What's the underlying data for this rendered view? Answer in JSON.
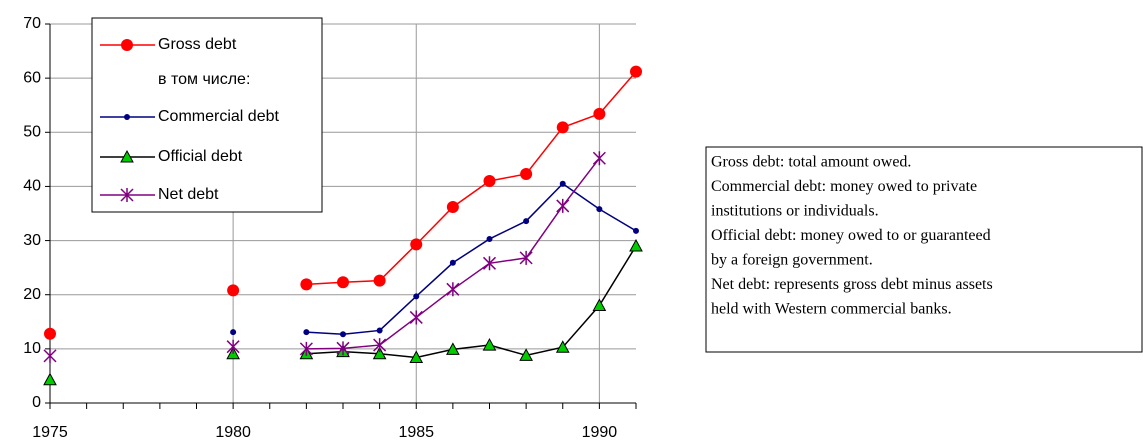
{
  "chart_data": {
    "type": "line",
    "x": [
      1975,
      1976,
      1977,
      1978,
      1979,
      1980,
      1981,
      1982,
      1983,
      1984,
      1985,
      1986,
      1987,
      1988,
      1989,
      1990,
      1991
    ],
    "series": [
      {
        "name": "Gross debt",
        "color": "#ff0000",
        "marker": "circle",
        "values": [
          12.8,
          null,
          null,
          null,
          null,
          20.8,
          null,
          21.9,
          22.3,
          22.6,
          29.3,
          36.2,
          41.0,
          42.3,
          50.9,
          53.4,
          61.2
        ]
      },
      {
        "name": "Commercial debt",
        "color": "#000080",
        "marker": "dot",
        "values": [
          null,
          null,
          null,
          null,
          null,
          13.1,
          null,
          13.1,
          12.7,
          13.4,
          19.7,
          25.9,
          30.3,
          33.6,
          40.5,
          35.8,
          31.8
        ]
      },
      {
        "name": "Official debt",
        "color": "#000000",
        "marker": "triangle",
        "marker_fill": "#00cc00",
        "values": [
          4.3,
          null,
          null,
          null,
          null,
          9.1,
          null,
          9.1,
          9.5,
          9.1,
          8.4,
          9.9,
          10.7,
          8.8,
          10.3,
          18.0,
          29.0
        ]
      },
      {
        "name": "Net debt",
        "color": "#800080",
        "marker": "star",
        "values": [
          8.7,
          null,
          null,
          null,
          null,
          10.4,
          null,
          10.0,
          10.1,
          10.7,
          15.8,
          21.0,
          25.8,
          26.8,
          36.4,
          45.2,
          null
        ]
      }
    ],
    "legend_note": "в том числе:",
    "xlim": [
      1975,
      1991
    ],
    "xticks": [
      1975,
      1980,
      1985,
      1990
    ],
    "xminor_ticks": [
      1975,
      1976,
      1977,
      1978,
      1979,
      1980,
      1981,
      1982,
      1983,
      1984,
      1985,
      1986,
      1987,
      1988,
      1989,
      1990,
      1991
    ],
    "ylim": [
      0,
      70
    ],
    "yticks": [
      0,
      10,
      20,
      30,
      40,
      50,
      60,
      70
    ],
    "grid": true,
    "notes": [
      "Gross debt: total amount owed.",
      "Commercial debt: money owed to private",
      "institutions or individuals.",
      "Official debt: money owed to or guaranteed",
      "by a foreign government.",
      "Net debt: represents gross debt minus assets",
      "held with Western commercial banks."
    ]
  }
}
